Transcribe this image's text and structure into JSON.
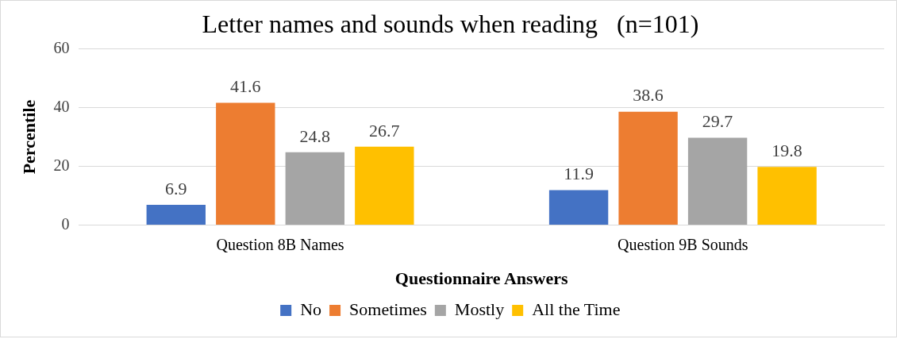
{
  "chart_data": {
    "type": "bar",
    "title": "Letter names and sounds when reading   (n=101)",
    "xlabel": "Questionnaire Answers",
    "ylabel": "Percentile",
    "categories": [
      "Question 8B Names",
      "Question 9B Sounds"
    ],
    "series": [
      {
        "name": "No",
        "color": "#4472c4",
        "values": [
          6.9,
          11.9
        ]
      },
      {
        "name": "Sometimes",
        "color": "#ed7d31",
        "values": [
          41.6,
          38.6
        ]
      },
      {
        "name": "Mostly",
        "color": "#a5a5a5",
        "values": [
          24.8,
          29.7
        ]
      },
      {
        "name": "All the Time",
        "color": "#ffc000",
        "values": [
          26.7,
          19.8
        ]
      }
    ],
    "ylim": [
      0,
      60
    ],
    "yticks": [
      0,
      20,
      40,
      60
    ],
    "grid": "y",
    "legend": "bottom",
    "data_labels": true
  }
}
